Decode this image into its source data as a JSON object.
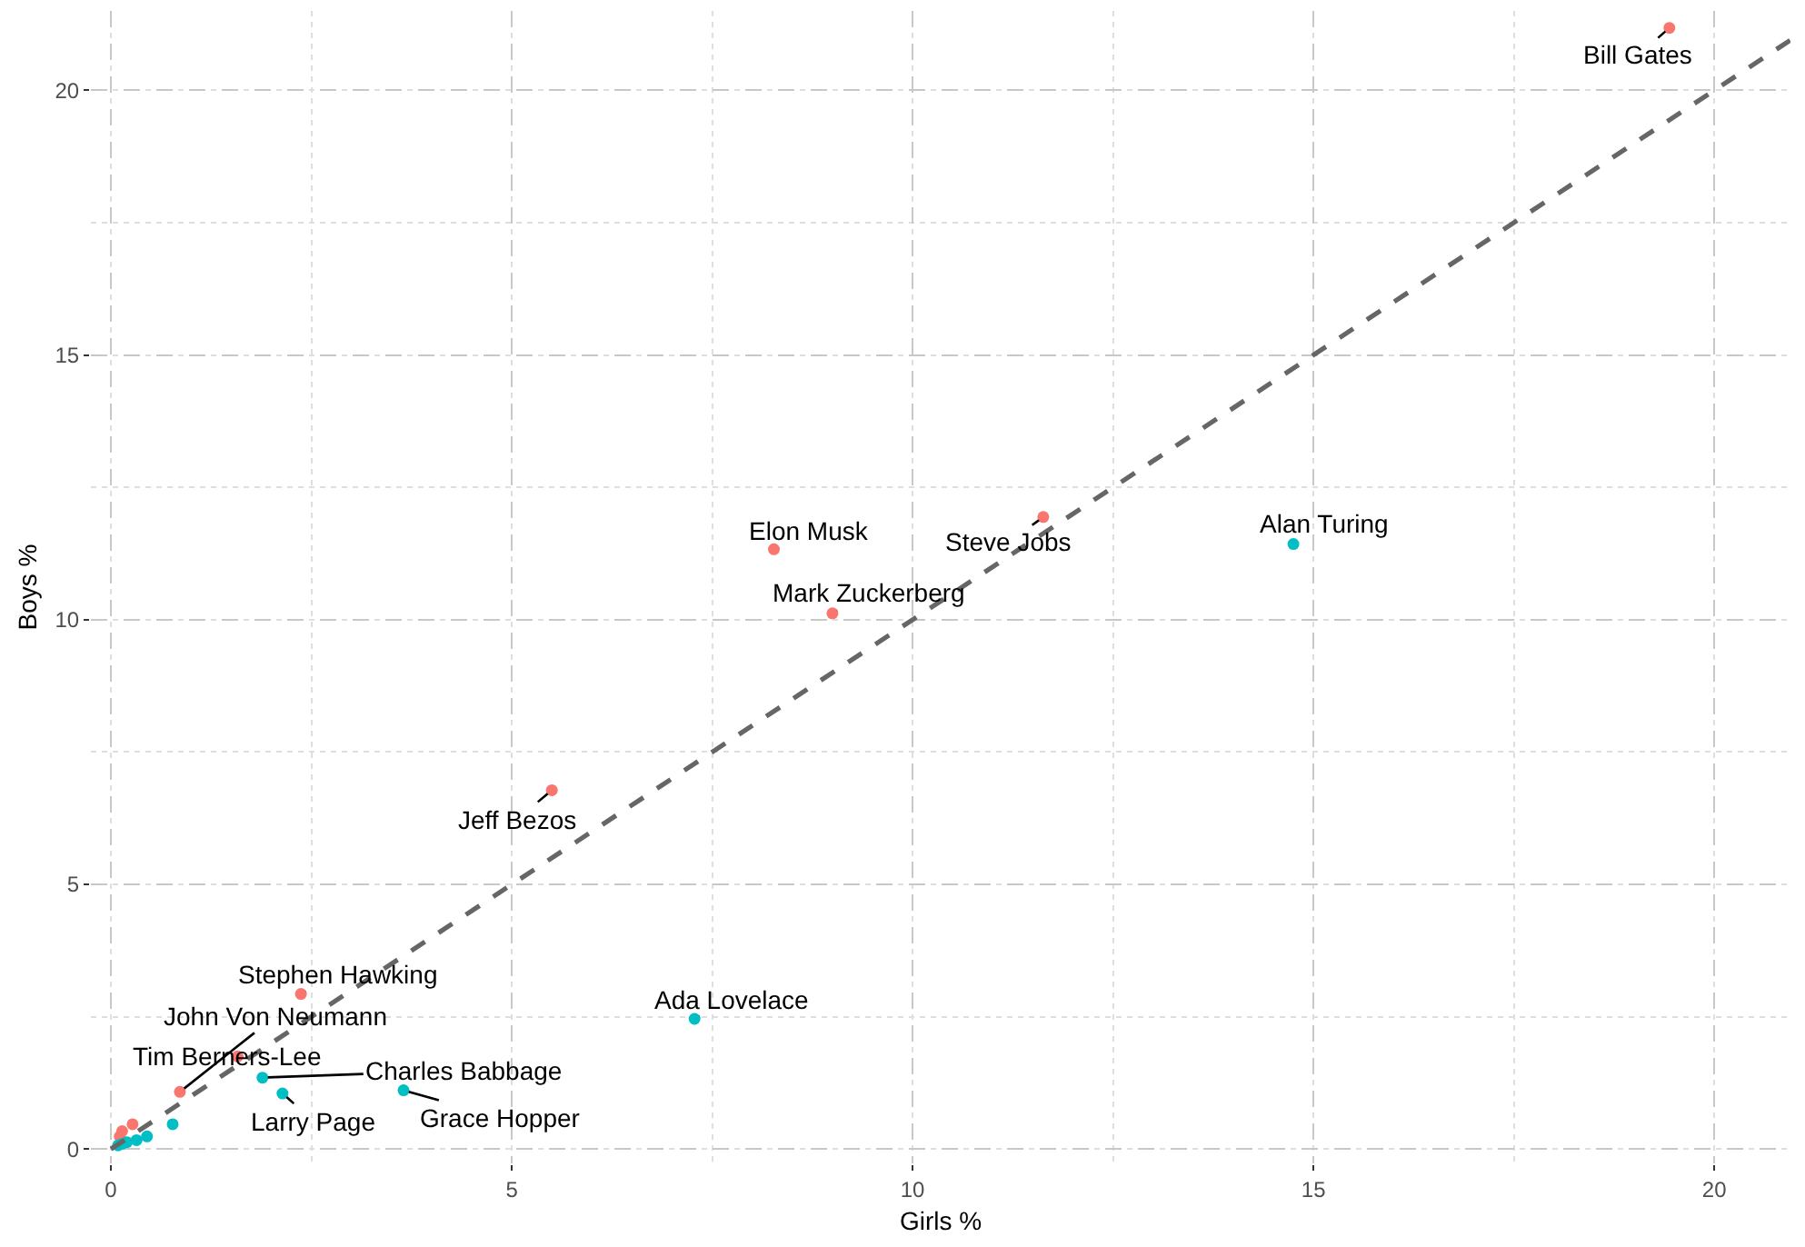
{
  "chart_data": {
    "type": "scatter",
    "xlabel": "Girls %",
    "ylabel": "Boys %",
    "xlim": [
      -0.25,
      20.95
    ],
    "ylim": [
      -0.27,
      21.5
    ],
    "xticks": [
      0,
      5,
      10,
      15,
      20
    ],
    "yticks": [
      0,
      5,
      10,
      15,
      20
    ],
    "grid": true,
    "marker": "circle",
    "series": [
      {
        "color": "#f8766d",
        "x": [
          19.44,
          8.27,
          11.63,
          9.0,
          5.5,
          2.37,
          0.86,
          1.58,
          0.14,
          0.27,
          0.11
        ],
        "values": [
          21.18,
          11.33,
          11.94,
          10.12,
          6.78,
          2.93,
          1.08,
          1.75,
          0.34,
          0.47,
          0.24
        ]
      },
      {
        "color": "#00bfc4",
        "x": [
          14.75,
          7.28,
          1.89,
          2.14,
          3.65,
          0.77,
          0.45,
          0.32,
          0.2,
          0.14,
          0.09
        ],
        "values": [
          11.43,
          2.46,
          1.35,
          1.05,
          1.11,
          0.47,
          0.24,
          0.17,
          0.13,
          0.1,
          0.07
        ]
      },
      {
        "type": "line",
        "color": "#666666",
        "line_style": "dashed",
        "marker": "none",
        "x": [
          0,
          20.95
        ],
        "values": [
          0,
          20.95
        ]
      }
    ],
    "annotations": [
      {
        "text": "Bill Gates",
        "x": 19.44,
        "y": 21.18
      },
      {
        "text": "Elon Musk",
        "x": 8.27,
        "y": 11.33
      },
      {
        "text": "Steve Jobs",
        "x": 11.63,
        "y": 11.94
      },
      {
        "text": "Mark Zuckerberg",
        "x": 9.0,
        "y": 10.12
      },
      {
        "text": "Alan Turing",
        "x": 14.75,
        "y": 11.43
      },
      {
        "text": "Jeff Bezos",
        "x": 5.5,
        "y": 6.78
      },
      {
        "text": "Stephen Hawking",
        "x": 2.37,
        "y": 2.93
      },
      {
        "text": "John Von Neumann",
        "x": 0.86,
        "y": 1.08
      },
      {
        "text": "Tim Berners-Lee",
        "x": 1.58,
        "y": 1.75
      },
      {
        "text": "Charles Babbage",
        "x": 1.89,
        "y": 1.35
      },
      {
        "text": "Larry Page",
        "x": 2.14,
        "y": 1.05
      },
      {
        "text": "Grace Hopper",
        "x": 3.65,
        "y": 1.11
      },
      {
        "text": "Ada Lovelace",
        "x": 7.28,
        "y": 2.46
      }
    ]
  }
}
